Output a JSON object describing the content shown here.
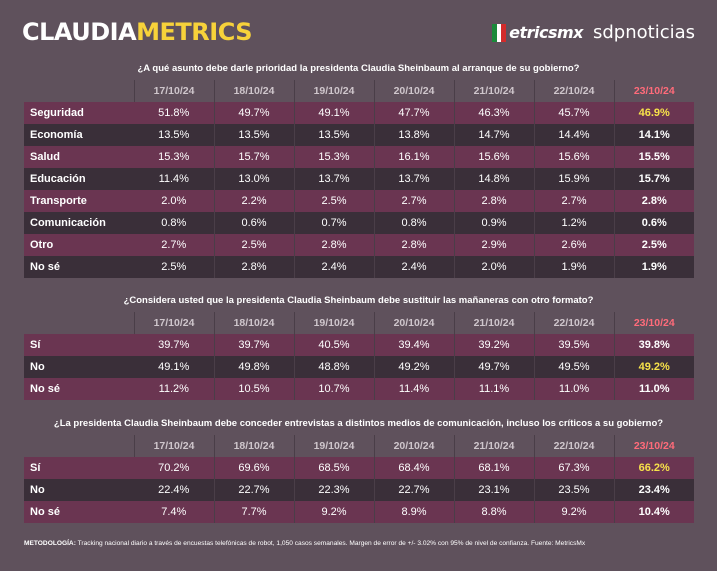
{
  "brand": {
    "part1": "CLAUDIA",
    "part2": "METRICS"
  },
  "logos": {
    "metrics_mx": "etricsmx",
    "sdp": "sdpnoticias"
  },
  "dates": [
    "17/10/24",
    "18/10/24",
    "19/10/24",
    "20/10/24",
    "21/10/24",
    "22/10/24",
    "23/10/24"
  ],
  "colors": {
    "accent_yellow": "#f7d23a",
    "latest_date_red": "#ff6b7a",
    "row_magenta": "#6a3551",
    "row_dark": "#3a2f39",
    "background": "#5f515c"
  },
  "sections": [
    {
      "question": "¿A qué asunto debe darle prioridad la presidenta Claudia Sheinbaum al arranque de su gobierno?",
      "rows": [
        {
          "label": "Seguridad",
          "values": [
            "51.8%",
            "49.7%",
            "49.1%",
            "47.7%",
            "46.3%",
            "45.7%",
            "46.9%"
          ],
          "highlight": true
        },
        {
          "label": "Economía",
          "values": [
            "13.5%",
            "13.5%",
            "13.5%",
            "13.8%",
            "14.7%",
            "14.4%",
            "14.1%"
          ]
        },
        {
          "label": "Salud",
          "values": [
            "15.3%",
            "15.7%",
            "15.3%",
            "16.1%",
            "15.6%",
            "15.6%",
            "15.5%"
          ]
        },
        {
          "label": "Educación",
          "values": [
            "11.4%",
            "13.0%",
            "13.7%",
            "13.7%",
            "14.8%",
            "15.9%",
            "15.7%"
          ]
        },
        {
          "label": "Transporte",
          "values": [
            "2.0%",
            "2.2%",
            "2.5%",
            "2.7%",
            "2.8%",
            "2.7%",
            "2.8%"
          ]
        },
        {
          "label": "Comunicación",
          "values": [
            "0.8%",
            "0.6%",
            "0.7%",
            "0.8%",
            "0.9%",
            "1.2%",
            "0.6%"
          ]
        },
        {
          "label": "Otro",
          "values": [
            "2.7%",
            "2.5%",
            "2.8%",
            "2.8%",
            "2.9%",
            "2.6%",
            "2.5%"
          ]
        },
        {
          "label": "No sé",
          "values": [
            "2.5%",
            "2.8%",
            "2.4%",
            "2.4%",
            "2.0%",
            "1.9%",
            "1.9%"
          ]
        }
      ]
    },
    {
      "question": "¿Considera usted que la presidenta Claudia Sheinbaum debe sustituir las mañaneras con otro formato?",
      "rows": [
        {
          "label": "Sí",
          "values": [
            "39.7%",
            "39.7%",
            "40.5%",
            "39.4%",
            "39.2%",
            "39.5%",
            "39.8%"
          ]
        },
        {
          "label": "No",
          "values": [
            "49.1%",
            "49.8%",
            "48.8%",
            "49.2%",
            "49.7%",
            "49.5%",
            "49.2%"
          ],
          "highlight": true
        },
        {
          "label": "No sé",
          "values": [
            "11.2%",
            "10.5%",
            "10.7%",
            "11.4%",
            "11.1%",
            "11.0%",
            "11.0%"
          ]
        }
      ]
    },
    {
      "question": "¿La presidenta Claudia Sheinbaum debe conceder entrevistas a distintos medios de comunicación, incluso los críticos a su gobierno?",
      "rows": [
        {
          "label": "Sí",
          "values": [
            "70.2%",
            "69.6%",
            "68.5%",
            "68.4%",
            "68.1%",
            "67.3%",
            "66.2%"
          ],
          "highlight": true
        },
        {
          "label": "No",
          "values": [
            "22.4%",
            "22.7%",
            "22.3%",
            "22.7%",
            "23.1%",
            "23.5%",
            "23.4%"
          ]
        },
        {
          "label": "No sé",
          "values": [
            "7.4%",
            "7.7%",
            "9.2%",
            "8.9%",
            "8.8%",
            "9.2%",
            "10.4%"
          ]
        }
      ]
    }
  ],
  "footer": {
    "label": "METODOLOGÍA:",
    "text": " Tracking nacional diario a través de encuestas telefónicas de robot, 1,050 casos semanales. Margen de error de +/- 3.02% con 95% de nivel de confianza. Fuente: MetricsMx"
  }
}
